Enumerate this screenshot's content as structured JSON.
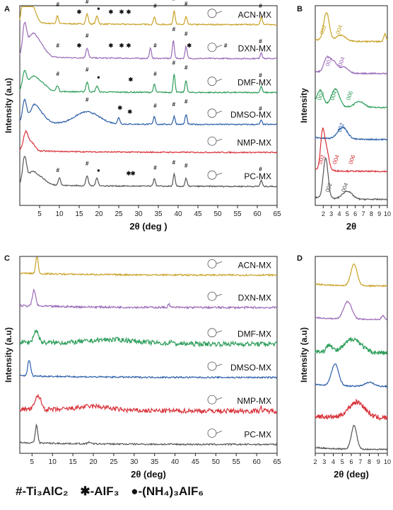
{
  "chart_data": [
    {
      "panel": "A",
      "type": "line",
      "xlabel": "2θ (deg )",
      "ylabel": "Intensity (a.u)",
      "xlim": [
        0,
        65
      ],
      "xticks": [
        5,
        10,
        15,
        20,
        25,
        30,
        35,
        40,
        45,
        50,
        55,
        60,
        65
      ],
      "y_ticks_shown": false,
      "series": [
        {
          "name": "ACN-MX",
          "color": "#c9a227",
          "base": 0.905,
          "peaks": [
            [
              1.2,
              0.28,
              0.5
            ],
            [
              3,
              0.09,
              1.0
            ],
            [
              9.5,
              0.04,
              0.25
            ],
            [
              17,
              0.05,
              0.3
            ],
            [
              19.5,
              0.04,
              0.3
            ],
            [
              34,
              0.04,
              0.25
            ],
            [
              39,
              0.07,
              0.25
            ],
            [
              42,
              0.04,
              0.25
            ],
            [
              61,
              0.04,
              0.25
            ]
          ],
          "markers": [
            [
              "#",
              9.6
            ],
            [
              "✱",
              15
            ],
            [
              "#",
              17
            ],
            [
              "●",
              19.9
            ],
            [
              "✱",
              23
            ],
            [
              "✱",
              25.7
            ],
            [
              "✱",
              27.5
            ],
            [
              "#",
              34.2
            ],
            [
              "#",
              38.9
            ],
            [
              "#",
              42
            ],
            [
              "#",
              60.8
            ]
          ]
        },
        {
          "name": "DXN-MX",
          "color": "#9b6ab8",
          "base": 0.735,
          "peaks": [
            [
              1.2,
              0.14,
              0.5
            ],
            [
              3,
              0.09,
              1.2
            ],
            [
              5,
              0.06,
              1.5
            ],
            [
              17,
              0.05,
              0.3
            ],
            [
              33,
              0.05,
              0.25
            ],
            [
              38.8,
              0.09,
              0.25
            ],
            [
              42,
              0.06,
              0.25
            ],
            [
              61,
              0.03,
              0.25
            ]
          ],
          "markers": [
            [
              "#",
              9.6
            ],
            [
              "✱",
              15
            ],
            [
              "#",
              17
            ],
            [
              "✱",
              23
            ],
            [
              "✱",
              25.7
            ],
            [
              "✱",
              27.5
            ],
            [
              "#",
              34.2
            ],
            [
              "#",
              38.9
            ],
            [
              "#",
              42
            ],
            [
              "✱",
              42.8
            ],
            [
              "#",
              52
            ],
            [
              "#",
              60.8
            ]
          ]
        },
        {
          "name": "DMF-MX",
          "color": "#2e9e5b",
          "base": 0.565,
          "peaks": [
            [
              1.2,
              0.09,
              0.5
            ],
            [
              3,
              0.05,
              1.0
            ],
            [
              5,
              0.05,
              1.5
            ],
            [
              9.5,
              0.03,
              0.3
            ],
            [
              17,
              0.05,
              0.3
            ],
            [
              19.5,
              0.03,
              0.3
            ],
            [
              34,
              0.04,
              0.25
            ],
            [
              39,
              0.09,
              0.25
            ],
            [
              42,
              0.06,
              0.25
            ],
            [
              61,
              0.03,
              0.25
            ]
          ],
          "markers": [
            [
              "#",
              9.6
            ],
            [
              "#",
              17
            ],
            [
              "●",
              19.9
            ],
            [
              "✱",
              28
            ],
            [
              "#",
              34.2
            ],
            [
              "#",
              38.9
            ],
            [
              "#",
              42
            ],
            [
              "#",
              60.8
            ]
          ]
        },
        {
          "name": "DMSO-MX",
          "color": "#2b5ea8",
          "base": 0.405,
          "peaks": [
            [
              1.2,
              0.11,
              0.5
            ],
            [
              3.5,
              0.06,
              1.0
            ],
            [
              5,
              0.05,
              1.5
            ],
            [
              17,
              0.06,
              3.0
            ],
            [
              25,
              0.03,
              0.3
            ],
            [
              34,
              0.04,
              0.25
            ],
            [
              39,
              0.04,
              0.25
            ],
            [
              42,
              0.05,
              0.25
            ],
            [
              61,
              0.02,
              0.25
            ]
          ],
          "markers": [
            [
              "#",
              17
            ],
            [
              "✱",
              25.3
            ],
            [
              "✱",
              27.8
            ],
            [
              "#",
              34.2
            ],
            [
              "#",
              38.9
            ],
            [
              "#",
              42
            ],
            [
              "#",
              60.8
            ]
          ]
        },
        {
          "name": "NMP-MX",
          "color": "#d8323a",
          "base": 0.265,
          "peaks": [
            [
              1.5,
              0.09,
              0.6
            ],
            [
              3,
              0.04,
              0.8
            ]
          ],
          "markers": []
        },
        {
          "name": "PC-MX",
          "color": "#555555",
          "base": 0.095,
          "peaks": [
            [
              1.2,
              0.13,
              0.5
            ],
            [
              3,
              0.05,
              1.0
            ],
            [
              5,
              0.04,
              1.5
            ],
            [
              10,
              0.04,
              0.3
            ],
            [
              17,
              0.05,
              0.3
            ],
            [
              19.5,
              0.04,
              0.3
            ],
            [
              34,
              0.04,
              0.25
            ],
            [
              39,
              0.06,
              0.25
            ],
            [
              42,
              0.04,
              0.25
            ],
            [
              61,
              0.03,
              0.25
            ]
          ],
          "markers": [
            [
              "#",
              9.6
            ],
            [
              "#",
              17
            ],
            [
              "●",
              19.9
            ],
            [
              "✱",
              27.5
            ],
            [
              "✱",
              28.6
            ],
            [
              "#",
              34.2
            ],
            [
              "#",
              38.9
            ],
            [
              "#",
              42
            ],
            [
              "#",
              60.8
            ]
          ]
        }
      ]
    },
    {
      "panel": "B",
      "type": "line",
      "xlabel": "2θ",
      "ylabel": "Intensity",
      "xlim": [
        1,
        10
      ],
      "xticks": [
        2,
        3,
        4,
        5,
        6,
        7,
        8,
        9,
        10
      ],
      "series": [
        {
          "name": "ACN-MX",
          "color": "#c9a227",
          "base": 0.82,
          "peaks": [
            [
              2.4,
              0.14,
              0.35
            ],
            [
              4.2,
              0.03,
              0.6
            ],
            [
              9.7,
              0.04,
              0.15
            ]
          ],
          "labels": [
            [
              "002",
              2.2
            ],
            [
              "004",
              4.2
            ]
          ]
        },
        {
          "name": "DXN-MX",
          "color": "#9b6ab8",
          "base": 0.66,
          "peaks": [
            [
              2.4,
              0.06,
              0.35
            ],
            [
              3.2,
              0.06,
              0.5
            ],
            [
              4.6,
              0.03,
              0.5
            ]
          ],
          "labels": [
            [
              "002",
              2.9
            ],
            [
              "004",
              4.5
            ]
          ]
        },
        {
          "name": "DMF-MX",
          "color": "#2e9e5b",
          "base": 0.49,
          "peaks": [
            [
              1.6,
              0.08,
              0.4
            ],
            [
              3.5,
              0.09,
              0.5
            ],
            [
              6.5,
              0.03,
              0.6
            ]
          ],
          "labels": [
            [
              "002",
              1.9
            ],
            [
              "004",
              3.5
            ],
            [
              "006",
              5.5
            ]
          ]
        },
        {
          "name": "DMSO-MX",
          "color": "#2b5ea8",
          "base": 0.33,
          "peaks": [
            [
              4.4,
              0.06,
              0.6
            ]
          ],
          "labels": [
            [
              "002",
              4.4
            ]
          ]
        },
        {
          "name": "NMP-MX",
          "color": "#d8323a",
          "base": 0.17,
          "peaks": [
            [
              1.9,
              0.18,
              0.25
            ],
            [
              2.4,
              0.1,
              0.3
            ]
          ],
          "labels": [
            [
              "002",
              2.0
            ],
            [
              "004",
              3.8
            ],
            [
              "006",
              5.8
            ]
          ]
        },
        {
          "name": "PC-MX",
          "color": "#555555",
          "base": 0.03,
          "peaks": [
            [
              2.3,
              0.2,
              0.3
            ],
            [
              5.0,
              0.04,
              0.6
            ]
          ],
          "labels": [
            [
              "002",
              2.9
            ],
            [
              "004",
              4.9
            ]
          ]
        }
      ]
    },
    {
      "panel": "C",
      "type": "line",
      "xlabel": "2θ (deg)",
      "ylabel": "Intensity (a.u)",
      "xlim": [
        2,
        65
      ],
      "xticks": [
        5,
        10,
        15,
        20,
        25,
        30,
        35,
        40,
        45,
        50,
        55,
        60,
        65
      ],
      "series": [
        {
          "name": "ACN-MX",
          "color": "#c9a227",
          "base": 0.905,
          "noise": 0.004,
          "peaks": [
            [
              6.2,
              0.09,
              0.3
            ]
          ]
        },
        {
          "name": "DXN-MX",
          "color": "#9b6ab8",
          "base": 0.74,
          "noise": 0.005,
          "peaks": [
            [
              5.5,
              0.08,
              0.4
            ],
            [
              38.5,
              0.02,
              0.2
            ]
          ]
        },
        {
          "name": "DMF-MX",
          "color": "#2e9e5b",
          "base": 0.555,
          "noise": 0.012,
          "peaks": [
            [
              6.0,
              0.06,
              0.6
            ],
            [
              25,
              0.02,
              6.0
            ],
            [
              39,
              0.02,
              0.2
            ]
          ]
        },
        {
          "name": "DMSO-MX",
          "color": "#2b5ea8",
          "base": 0.385,
          "noise": 0.004,
          "peaks": [
            [
              4.3,
              0.08,
              0.35
            ]
          ]
        },
        {
          "name": "NMP-MX",
          "color": "#d8323a",
          "base": 0.215,
          "noise": 0.012,
          "peaks": [
            [
              6.5,
              0.07,
              0.7
            ],
            [
              20,
              0.02,
              4.0
            ],
            [
              61,
              0.02,
              0.2
            ]
          ]
        },
        {
          "name": "PC-MX",
          "color": "#555555",
          "base": 0.045,
          "noise": 0.004,
          "peaks": [
            [
              6.1,
              0.09,
              0.3
            ],
            [
              19,
              0.01,
              0.3
            ]
          ]
        }
      ]
    },
    {
      "panel": "D",
      "type": "line",
      "xlabel": "2θ (deg)",
      "ylabel": "Intensity (a.u)",
      "xlim": [
        2,
        10
      ],
      "xticks": [
        2,
        3,
        4,
        5,
        6,
        7,
        8,
        9,
        10
      ],
      "series": [
        {
          "name": "ACN-MX",
          "color": "#c9a227",
          "base": 0.85,
          "noise": 0.003,
          "peaks": [
            [
              6.3,
              0.11,
              0.35
            ]
          ]
        },
        {
          "name": "DXN-MX",
          "color": "#9b6ab8",
          "base": 0.68,
          "noise": 0.003,
          "peaks": [
            [
              5.6,
              0.09,
              0.45
            ],
            [
              9.5,
              0.02,
              0.15
            ]
          ]
        },
        {
          "name": "DMF-MX",
          "color": "#2e9e5b",
          "base": 0.51,
          "noise": 0.012,
          "peaks": [
            [
              3.6,
              0.04,
              0.3
            ],
            [
              6.2,
              0.07,
              0.9
            ]
          ]
        },
        {
          "name": "DMSO-MX",
          "color": "#2b5ea8",
          "base": 0.34,
          "noise": 0.003,
          "peaks": [
            [
              4.2,
              0.11,
              0.4
            ],
            [
              8.0,
              0.02,
              0.5
            ]
          ]
        },
        {
          "name": "NMP-MX",
          "color": "#d8323a",
          "base": 0.18,
          "noise": 0.012,
          "peaks": [
            [
              6.6,
              0.08,
              0.9
            ]
          ]
        },
        {
          "name": "PC-MX",
          "color": "#555555",
          "base": 0.02,
          "noise": 0.003,
          "peaks": [
            [
              6.3,
              0.12,
              0.3
            ]
          ]
        }
      ]
    }
  ],
  "panel_letters": [
    "A",
    "B",
    "C",
    "D"
  ],
  "legend": {
    "hash": "#-Ti₃AlC₂",
    "star": "✱-AlF₃",
    "dot": "●-(NH₄)₃AlF₆"
  }
}
